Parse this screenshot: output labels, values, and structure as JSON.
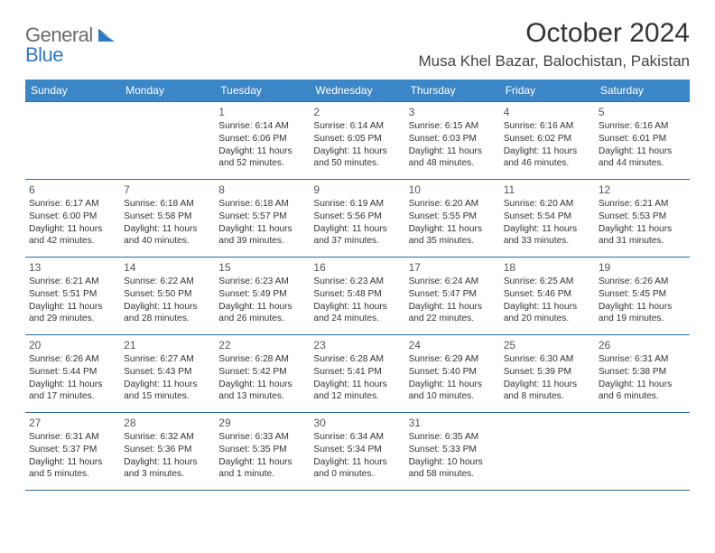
{
  "logo": {
    "text1": "General",
    "text2": "Blue"
  },
  "title": "October 2024",
  "location": "Musa Khel Bazar, Balochistan, Pakistan",
  "colors": {
    "header_bg": "#3b86c7",
    "header_text": "#ffffff",
    "border": "#2f6aa3",
    "body_text": "#333333",
    "logo_gray": "#6a6a6a",
    "logo_blue": "#2f78c3"
  },
  "weekdays": [
    "Sunday",
    "Monday",
    "Tuesday",
    "Wednesday",
    "Thursday",
    "Friday",
    "Saturday"
  ],
  "weeks": [
    [
      null,
      null,
      {
        "n": "1",
        "sr": "Sunrise: 6:14 AM",
        "ss": "Sunset: 6:06 PM",
        "dl": "Daylight: 11 hours and 52 minutes."
      },
      {
        "n": "2",
        "sr": "Sunrise: 6:14 AM",
        "ss": "Sunset: 6:05 PM",
        "dl": "Daylight: 11 hours and 50 minutes."
      },
      {
        "n": "3",
        "sr": "Sunrise: 6:15 AM",
        "ss": "Sunset: 6:03 PM",
        "dl": "Daylight: 11 hours and 48 minutes."
      },
      {
        "n": "4",
        "sr": "Sunrise: 6:16 AM",
        "ss": "Sunset: 6:02 PM",
        "dl": "Daylight: 11 hours and 46 minutes."
      },
      {
        "n": "5",
        "sr": "Sunrise: 6:16 AM",
        "ss": "Sunset: 6:01 PM",
        "dl": "Daylight: 11 hours and 44 minutes."
      }
    ],
    [
      {
        "n": "6",
        "sr": "Sunrise: 6:17 AM",
        "ss": "Sunset: 6:00 PM",
        "dl": "Daylight: 11 hours and 42 minutes."
      },
      {
        "n": "7",
        "sr": "Sunrise: 6:18 AM",
        "ss": "Sunset: 5:58 PM",
        "dl": "Daylight: 11 hours and 40 minutes."
      },
      {
        "n": "8",
        "sr": "Sunrise: 6:18 AM",
        "ss": "Sunset: 5:57 PM",
        "dl": "Daylight: 11 hours and 39 minutes."
      },
      {
        "n": "9",
        "sr": "Sunrise: 6:19 AM",
        "ss": "Sunset: 5:56 PM",
        "dl": "Daylight: 11 hours and 37 minutes."
      },
      {
        "n": "10",
        "sr": "Sunrise: 6:20 AM",
        "ss": "Sunset: 5:55 PM",
        "dl": "Daylight: 11 hours and 35 minutes."
      },
      {
        "n": "11",
        "sr": "Sunrise: 6:20 AM",
        "ss": "Sunset: 5:54 PM",
        "dl": "Daylight: 11 hours and 33 minutes."
      },
      {
        "n": "12",
        "sr": "Sunrise: 6:21 AM",
        "ss": "Sunset: 5:53 PM",
        "dl": "Daylight: 11 hours and 31 minutes."
      }
    ],
    [
      {
        "n": "13",
        "sr": "Sunrise: 6:21 AM",
        "ss": "Sunset: 5:51 PM",
        "dl": "Daylight: 11 hours and 29 minutes."
      },
      {
        "n": "14",
        "sr": "Sunrise: 6:22 AM",
        "ss": "Sunset: 5:50 PM",
        "dl": "Daylight: 11 hours and 28 minutes."
      },
      {
        "n": "15",
        "sr": "Sunrise: 6:23 AM",
        "ss": "Sunset: 5:49 PM",
        "dl": "Daylight: 11 hours and 26 minutes."
      },
      {
        "n": "16",
        "sr": "Sunrise: 6:23 AM",
        "ss": "Sunset: 5:48 PM",
        "dl": "Daylight: 11 hours and 24 minutes."
      },
      {
        "n": "17",
        "sr": "Sunrise: 6:24 AM",
        "ss": "Sunset: 5:47 PM",
        "dl": "Daylight: 11 hours and 22 minutes."
      },
      {
        "n": "18",
        "sr": "Sunrise: 6:25 AM",
        "ss": "Sunset: 5:46 PM",
        "dl": "Daylight: 11 hours and 20 minutes."
      },
      {
        "n": "19",
        "sr": "Sunrise: 6:26 AM",
        "ss": "Sunset: 5:45 PM",
        "dl": "Daylight: 11 hours and 19 minutes."
      }
    ],
    [
      {
        "n": "20",
        "sr": "Sunrise: 6:26 AM",
        "ss": "Sunset: 5:44 PM",
        "dl": "Daylight: 11 hours and 17 minutes."
      },
      {
        "n": "21",
        "sr": "Sunrise: 6:27 AM",
        "ss": "Sunset: 5:43 PM",
        "dl": "Daylight: 11 hours and 15 minutes."
      },
      {
        "n": "22",
        "sr": "Sunrise: 6:28 AM",
        "ss": "Sunset: 5:42 PM",
        "dl": "Daylight: 11 hours and 13 minutes."
      },
      {
        "n": "23",
        "sr": "Sunrise: 6:28 AM",
        "ss": "Sunset: 5:41 PM",
        "dl": "Daylight: 11 hours and 12 minutes."
      },
      {
        "n": "24",
        "sr": "Sunrise: 6:29 AM",
        "ss": "Sunset: 5:40 PM",
        "dl": "Daylight: 11 hours and 10 minutes."
      },
      {
        "n": "25",
        "sr": "Sunrise: 6:30 AM",
        "ss": "Sunset: 5:39 PM",
        "dl": "Daylight: 11 hours and 8 minutes."
      },
      {
        "n": "26",
        "sr": "Sunrise: 6:31 AM",
        "ss": "Sunset: 5:38 PM",
        "dl": "Daylight: 11 hours and 6 minutes."
      }
    ],
    [
      {
        "n": "27",
        "sr": "Sunrise: 6:31 AM",
        "ss": "Sunset: 5:37 PM",
        "dl": "Daylight: 11 hours and 5 minutes."
      },
      {
        "n": "28",
        "sr": "Sunrise: 6:32 AM",
        "ss": "Sunset: 5:36 PM",
        "dl": "Daylight: 11 hours and 3 minutes."
      },
      {
        "n": "29",
        "sr": "Sunrise: 6:33 AM",
        "ss": "Sunset: 5:35 PM",
        "dl": "Daylight: 11 hours and 1 minute."
      },
      {
        "n": "30",
        "sr": "Sunrise: 6:34 AM",
        "ss": "Sunset: 5:34 PM",
        "dl": "Daylight: 11 hours and 0 minutes."
      },
      {
        "n": "31",
        "sr": "Sunrise: 6:35 AM",
        "ss": "Sunset: 5:33 PM",
        "dl": "Daylight: 10 hours and 58 minutes."
      },
      null,
      null
    ]
  ]
}
